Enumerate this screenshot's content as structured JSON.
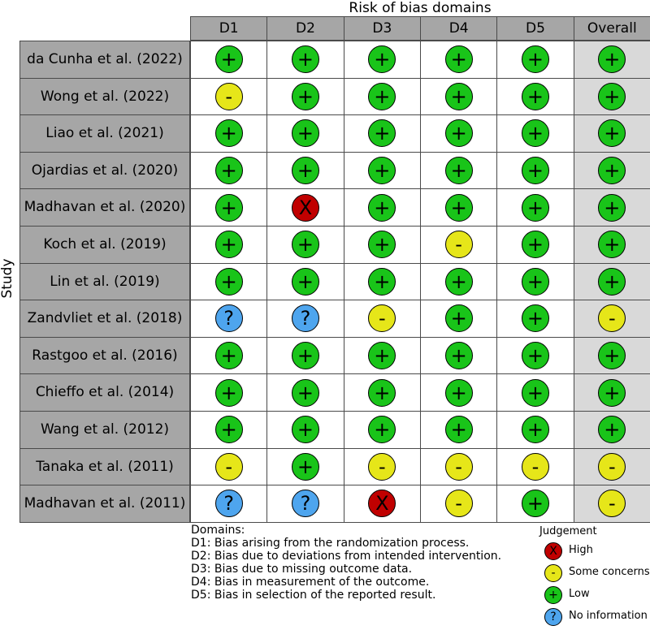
{
  "chart_data": {
    "type": "table",
    "title": "Risk of bias domains",
    "ylabel": "Study",
    "columns": [
      "D1",
      "D2",
      "D3",
      "D4",
      "D5",
      "Overall"
    ],
    "studies": [
      "da Cunha et al. (2022)",
      "Wong et al. (2022)",
      "Liao et al. (2021)",
      "Ojardias et al. (2020)",
      "Madhavan et al. (2020)",
      "Koch et al. (2019)",
      "Lin et al. (2019)",
      "Zandvliet et al. (2018)",
      "Rastgoo et al. (2016)",
      "Chieffo et al. (2014)",
      "Wang et al. (2012)",
      "Tanaka et al. (2011)",
      "Madhavan et al. (2011)"
    ],
    "judgements": [
      [
        "low",
        "low",
        "low",
        "low",
        "low",
        "low"
      ],
      [
        "some",
        "low",
        "low",
        "low",
        "low",
        "low"
      ],
      [
        "low",
        "low",
        "low",
        "low",
        "low",
        "low"
      ],
      [
        "low",
        "low",
        "low",
        "low",
        "low",
        "low"
      ],
      [
        "low",
        "high",
        "low",
        "low",
        "low",
        "low"
      ],
      [
        "low",
        "low",
        "low",
        "some",
        "low",
        "low"
      ],
      [
        "low",
        "low",
        "low",
        "low",
        "low",
        "low"
      ],
      [
        "noinfo",
        "noinfo",
        "some",
        "low",
        "low",
        "some"
      ],
      [
        "low",
        "low",
        "low",
        "low",
        "low",
        "low"
      ],
      [
        "low",
        "low",
        "low",
        "low",
        "low",
        "low"
      ],
      [
        "low",
        "low",
        "low",
        "low",
        "low",
        "low"
      ],
      [
        "some",
        "low",
        "some",
        "some",
        "some",
        "some"
      ],
      [
        "noinfo",
        "noinfo",
        "high",
        "some",
        "low",
        "some"
      ]
    ],
    "domains_title": "Domains:",
    "domains": [
      "D1: Bias arising from the randomization process.",
      "D2: Bias due to deviations from intended intervention.",
      "D3: Bias due to missing outcome data.",
      "D4: Bias in measurement of the outcome.",
      "D5: Bias in selection of the reported result."
    ],
    "legend": {
      "title": "Judgement",
      "placement": "bottom-right",
      "items": [
        {
          "key": "high",
          "label": "High",
          "symbol": "X",
          "color": "#c00000"
        },
        {
          "key": "some",
          "label": "Some concerns",
          "symbol": "-",
          "color": "#e6e619"
        },
        {
          "key": "low",
          "label": "Low",
          "symbol": "+",
          "color": "#19c419"
        },
        {
          "key": "noinfo",
          "label": "No information",
          "symbol": "?",
          "color": "#4ea5ee"
        }
      ]
    },
    "colors": {
      "header_fill": "#a6a6a6",
      "overall_fill": "#d9d9d9",
      "cell_fill": "#ffffff",
      "border": "#4a4a4a"
    }
  }
}
